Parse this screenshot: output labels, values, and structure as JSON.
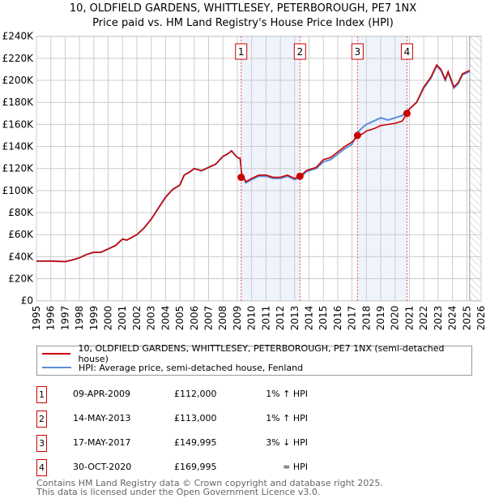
{
  "title": "10, OLDFIELD GARDENS, WHITTLESEY, PETERBOROUGH, PE7 1NX",
  "subtitle": "Price paid vs. HM Land Registry's House Price Index (HPI)",
  "chart_data": {
    "type": "line",
    "xlim": [
      1995,
      2026
    ],
    "ylim": [
      0,
      240000
    ],
    "y_ticks": [
      0,
      20000,
      40000,
      60000,
      80000,
      100000,
      120000,
      140000,
      160000,
      180000,
      200000,
      220000,
      240000
    ],
    "y_tick_labels": [
      "£0",
      "£20K",
      "£40K",
      "£60K",
      "£80K",
      "£100K",
      "£120K",
      "£140K",
      "£160K",
      "£180K",
      "£200K",
      "£220K",
      "£240K"
    ],
    "x_tick_labels": [
      "1995",
      "1996",
      "1997",
      "1998",
      "1999",
      "2000",
      "2001",
      "2002",
      "2003",
      "2004",
      "2005",
      "2006",
      "2007",
      "2008",
      "2009",
      "2010",
      "2011",
      "2012",
      "2013",
      "2014",
      "2015",
      "2016",
      "2017",
      "2018",
      "2019",
      "2020",
      "2021",
      "2022",
      "2023",
      "2024",
      "2025",
      "2026"
    ],
    "x": [
      1995,
      1996,
      1997,
      1997.5,
      1998,
      1998.5,
      1999,
      1999.5,
      2000,
      2000.5,
      2001,
      2001.3,
      2002,
      2002.5,
      2003,
      2003.5,
      2004,
      2004.5,
      2005,
      2005.3,
      2005.7,
      2006,
      2006.5,
      2007,
      2007.5,
      2008,
      2008.3,
      2008.6,
      2009,
      2009.2,
      2009.3,
      2009.6,
      2010,
      2010.5,
      2011,
      2011.5,
      2012,
      2012.5,
      2013,
      2013.4,
      2013.8,
      2014,
      2014.5,
      2015,
      2015.5,
      2016,
      2016.5,
      2017,
      2017.4,
      2017.8,
      2018,
      2018.5,
      2019,
      2019.5,
      2020,
      2020.5,
      2020.83,
      2021,
      2021.5,
      2022,
      2022.5,
      2022.9,
      2023.2,
      2023.5,
      2023.7,
      2024.1,
      2024.4,
      2024.7,
      2025.2
    ],
    "series": [
      {
        "name": "10, OLDFIELD GARDENS, WHITTLESEY, PETERBOROUGH, PE7 1NX (semi-detached house)",
        "color": "#cc0000",
        "values": [
          36000,
          36000,
          35500,
          37000,
          39000,
          42000,
          44000,
          44000,
          47000,
          50000,
          56000,
          55000,
          60000,
          66000,
          74000,
          84000,
          94000,
          101000,
          105000,
          114000,
          117000,
          120000,
          118000,
          121000,
          124000,
          131000,
          133000,
          136000,
          130000,
          129000,
          116000,
          108000,
          111000,
          114000,
          114000,
          112000,
          112000,
          114000,
          111000,
          113000,
          118000,
          119000,
          121000,
          128000,
          130000,
          135000,
          140000,
          144000,
          149000,
          152000,
          154000,
          156000,
          159000,
          160000,
          161000,
          163000,
          170000,
          174000,
          180000,
          194000,
          203000,
          214000,
          210000,
          201000,
          208000,
          194000,
          198000,
          206000,
          209000
        ]
      },
      {
        "name": "HPI: Average price, semi-detached house, Fenland",
        "color": "#5b8fd6",
        "values": [
          36000,
          36000,
          35500,
          37000,
          39000,
          42000,
          44000,
          44000,
          47000,
          50000,
          56000,
          55000,
          60000,
          66000,
          74000,
          84000,
          94000,
          101000,
          105000,
          114000,
          117000,
          120000,
          118000,
          121000,
          124000,
          131000,
          133000,
          136000,
          130000,
          129000,
          115000,
          107000,
          110000,
          113000,
          113000,
          111000,
          111000,
          113000,
          110000,
          112000,
          117000,
          118000,
          120000,
          126000,
          128000,
          133000,
          138000,
          142000,
          153000,
          158000,
          160000,
          163000,
          166000,
          164000,
          166000,
          168000,
          172000,
          174000,
          180000,
          193000,
          202000,
          213000,
          209000,
          200000,
          207000,
          193000,
          197000,
          205000,
          208000
        ]
      }
    ],
    "sales": [
      {
        "num": "1",
        "x": 2009.27,
        "price": 112000,
        "date": "09-APR-2009",
        "price_label": "£112,000",
        "hpi": "1% ↑ HPI"
      },
      {
        "num": "2",
        "x": 2013.37,
        "price": 113000,
        "date": "14-MAY-2013",
        "price_label": "£113,000",
        "hpi": "1% ↑ HPI"
      },
      {
        "num": "3",
        "x": 2017.38,
        "price": 149995,
        "date": "17-MAY-2017",
        "price_label": "£149,995",
        "hpi": "3% ↓ HPI"
      },
      {
        "num": "4",
        "x": 2020.83,
        "price": 169995,
        "date": "30-OCT-2020",
        "price_label": "£169,995",
        "hpi": "≈ HPI"
      }
    ],
    "forecast_start": 2025.2
  },
  "footer": [
    "Contains HM Land Registry data © Crown copyright and database right 2025.",
    "This data is licensed under the Open Government Licence v3.0."
  ]
}
